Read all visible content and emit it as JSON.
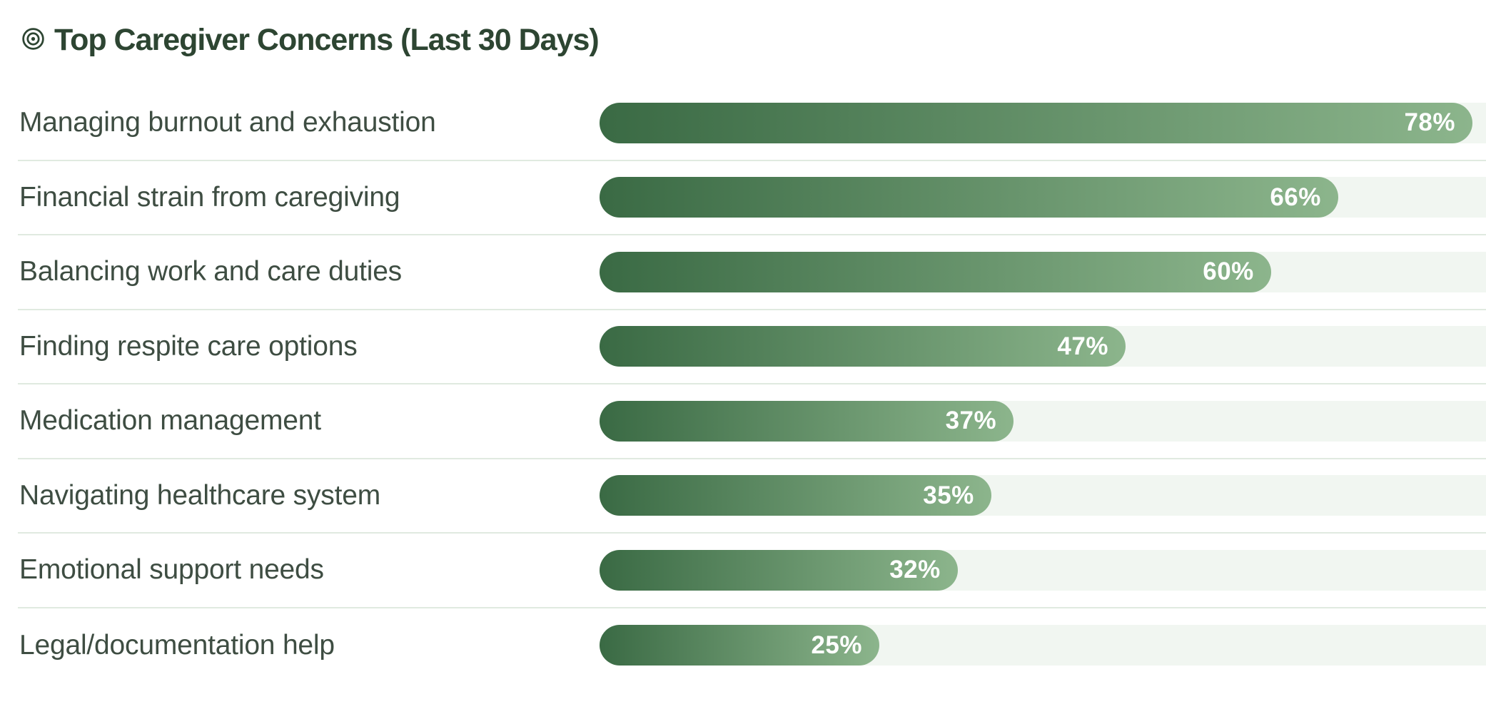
{
  "title": {
    "text": "Top Caregiver Concerns (Last 30 Days)",
    "icon": "target-icon"
  },
  "colors": {
    "bar_gradient_start": "#3a6a44",
    "bar_gradient_end": "#8cb58c",
    "track": "#f1f6f1",
    "separator": "#e0eae0",
    "title_text": "#2d4532",
    "label_text": "#3e4d42",
    "percent_text": "#ffffff",
    "background": "#ffffff"
  },
  "chart_data": {
    "type": "bar",
    "orientation": "horizontal",
    "title": "Top Caregiver Concerns (Last 30 Days)",
    "categories": [
      "Managing burnout and exhaustion",
      "Financial strain from caregiving",
      "Balancing work and care duties",
      "Finding respite care options",
      "Medication management",
      "Navigating healthcare system",
      "Emotional support needs",
      "Legal/documentation help"
    ],
    "values": [
      78,
      66,
      60,
      47,
      37,
      35,
      32,
      25
    ],
    "value_suffix": "%",
    "xlim": [
      0,
      100
    ],
    "value_labels": "inside-end",
    "grid": false,
    "legend": false,
    "track_background": true,
    "row_separators": true
  }
}
